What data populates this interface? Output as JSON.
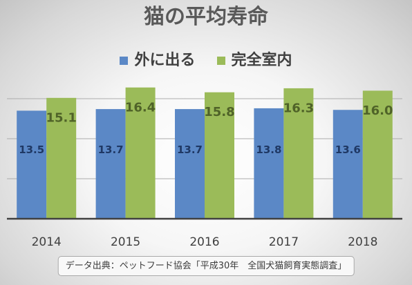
{
  "chart_data": {
    "type": "bar",
    "title": "猫の平均寿命",
    "categories": [
      "2014",
      "2015",
      "2016",
      "2017",
      "2018"
    ],
    "series": [
      {
        "name": "外に出る",
        "color": "#5b88c6",
        "label_color": "#1f3864",
        "values": [
          13.5,
          13.7,
          13.7,
          13.8,
          13.6
        ]
      },
      {
        "name": "完全室内",
        "color": "#9bbb59",
        "label_color": "#4f6228",
        "values": [
          15.1,
          16.4,
          15.8,
          16.3,
          16.0
        ]
      }
    ],
    "ylim": [
      0,
      20
    ],
    "grid": true,
    "grid_step": 5,
    "legend": "top",
    "data_labels": true
  },
  "source_note": "データ出典：ペットフード協会「平成30年　全国犬猫飼育実態調査」"
}
